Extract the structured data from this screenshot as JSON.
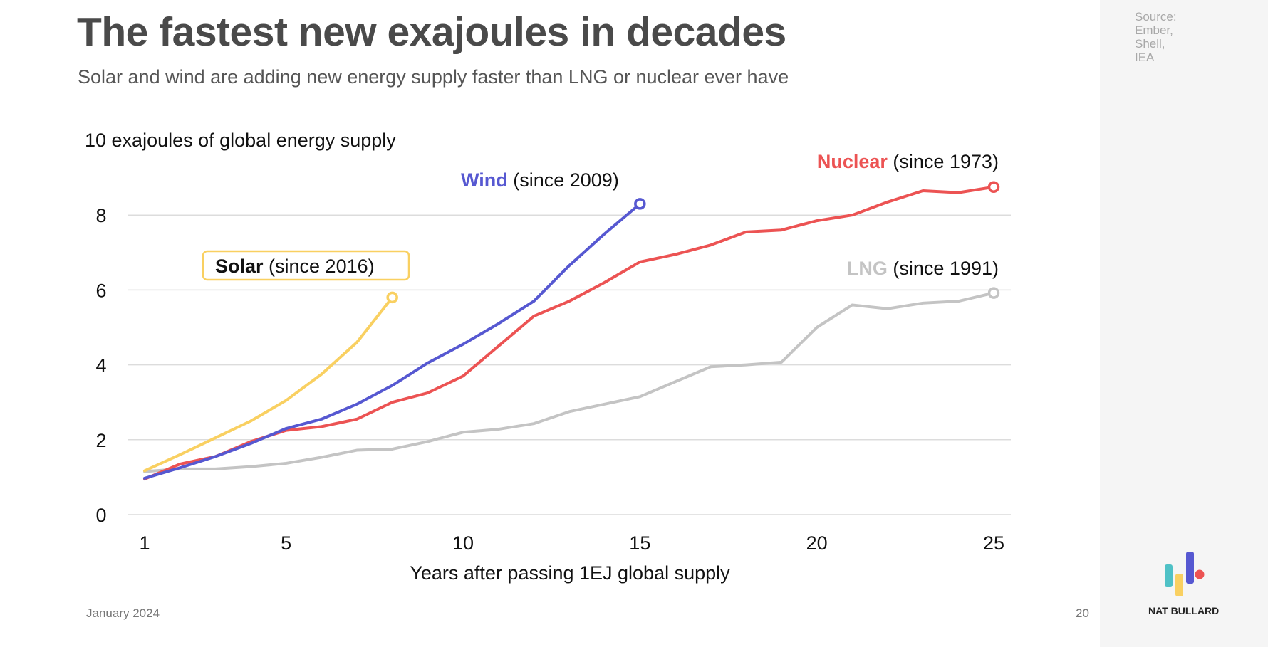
{
  "header": {
    "title": "The fastest new exajoules in decades",
    "subtitle": "Solar and wind are adding new energy supply faster than LNG or nuclear ever have"
  },
  "source": [
    "Source:",
    "Ember,",
    "Shell,",
    "IEA"
  ],
  "footer": {
    "date": "January 2024",
    "page": "20",
    "brand": "NAT BULLARD"
  },
  "colors": {
    "solar": "#f9d061",
    "wind": "#5658d1",
    "nuclear": "#ec5353",
    "lng": "#c4c4c4",
    "logo_teal": "#4fc1c6"
  },
  "chart_data": {
    "type": "line",
    "title": "The fastest new exajoules in decades",
    "ylabel": "10 exajoules of global energy supply",
    "xlabel": "Years after passing 1EJ global supply",
    "xlim": [
      1,
      25
    ],
    "ylim": [
      0,
      9
    ],
    "xticks": [
      1,
      5,
      10,
      15,
      20,
      25
    ],
    "yticks": [
      0,
      2,
      4,
      6,
      8
    ],
    "grid": true,
    "series": [
      {
        "key": "lng",
        "name": "LNG",
        "suffix": " (since 1991)",
        "color": "#c4c4c4",
        "values": [
          1.15,
          1.22,
          1.22,
          1.28,
          1.37,
          1.53,
          1.72,
          1.75,
          1.95,
          2.2,
          2.28,
          2.43,
          2.75,
          2.95,
          3.15,
          3.55,
          3.95,
          4.0,
          4.07,
          5.0,
          5.6,
          5.5,
          5.65,
          5.7,
          5.92
        ]
      },
      {
        "key": "nuclear",
        "name": "Nuclear",
        "suffix": " (since 1973)",
        "color": "#ec5353",
        "values": [
          0.95,
          1.35,
          1.55,
          1.95,
          2.25,
          2.35,
          2.55,
          3.0,
          3.25,
          3.7,
          4.5,
          5.3,
          5.7,
          6.2,
          6.75,
          6.95,
          7.2,
          7.55,
          7.6,
          7.85,
          8.0,
          8.35,
          8.65,
          8.6,
          8.75
        ]
      },
      {
        "key": "wind",
        "name": "Wind",
        "suffix": " (since 2009)",
        "color": "#5658d1",
        "values": [
          0.97,
          1.25,
          1.55,
          1.9,
          2.3,
          2.55,
          2.95,
          3.45,
          4.05,
          4.55,
          5.1,
          5.7,
          6.65,
          7.5,
          8.3
        ]
      },
      {
        "key": "solar",
        "name": "Solar",
        "suffix": " (since 2016)",
        "color": "#f9d061",
        "values": [
          1.17,
          1.6,
          2.05,
          2.5,
          3.05,
          3.75,
          4.6,
          5.8
        ]
      }
    ]
  }
}
